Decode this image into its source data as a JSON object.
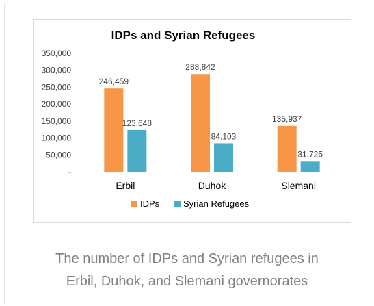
{
  "chart_data": {
    "type": "bar",
    "title": "IDPs and Syrian Refugees",
    "categories": [
      "Erbil",
      "Duhok",
      "Slemani"
    ],
    "series": [
      {
        "name": "IDPs",
        "values": [
          246459,
          288842,
          135937
        ],
        "labels": [
          "246,459",
          "288,842",
          "135,937"
        ],
        "color": "#f79646"
      },
      {
        "name": "Syrian Refugees",
        "values": [
          123648,
          84103,
          31725
        ],
        "labels": [
          "123,648",
          "84,103",
          "31,725"
        ],
        "color": "#4bacc6"
      }
    ],
    "ylim": [
      0,
      350000
    ],
    "yticks": [
      0,
      50000,
      100000,
      150000,
      200000,
      250000,
      300000,
      350000
    ],
    "ytick_labels": [
      "-",
      "50,000",
      "100,000",
      "150,000",
      "200,000",
      "250,000",
      "300,000",
      "350,000"
    ],
    "xlabel": "",
    "ylabel": "",
    "legend_position": "bottom",
    "grid": false
  },
  "caption": {
    "line1": "The number of IDPs and Syrian refugees in",
    "line2": "Erbil, Duhok, and Slemani governorates"
  }
}
